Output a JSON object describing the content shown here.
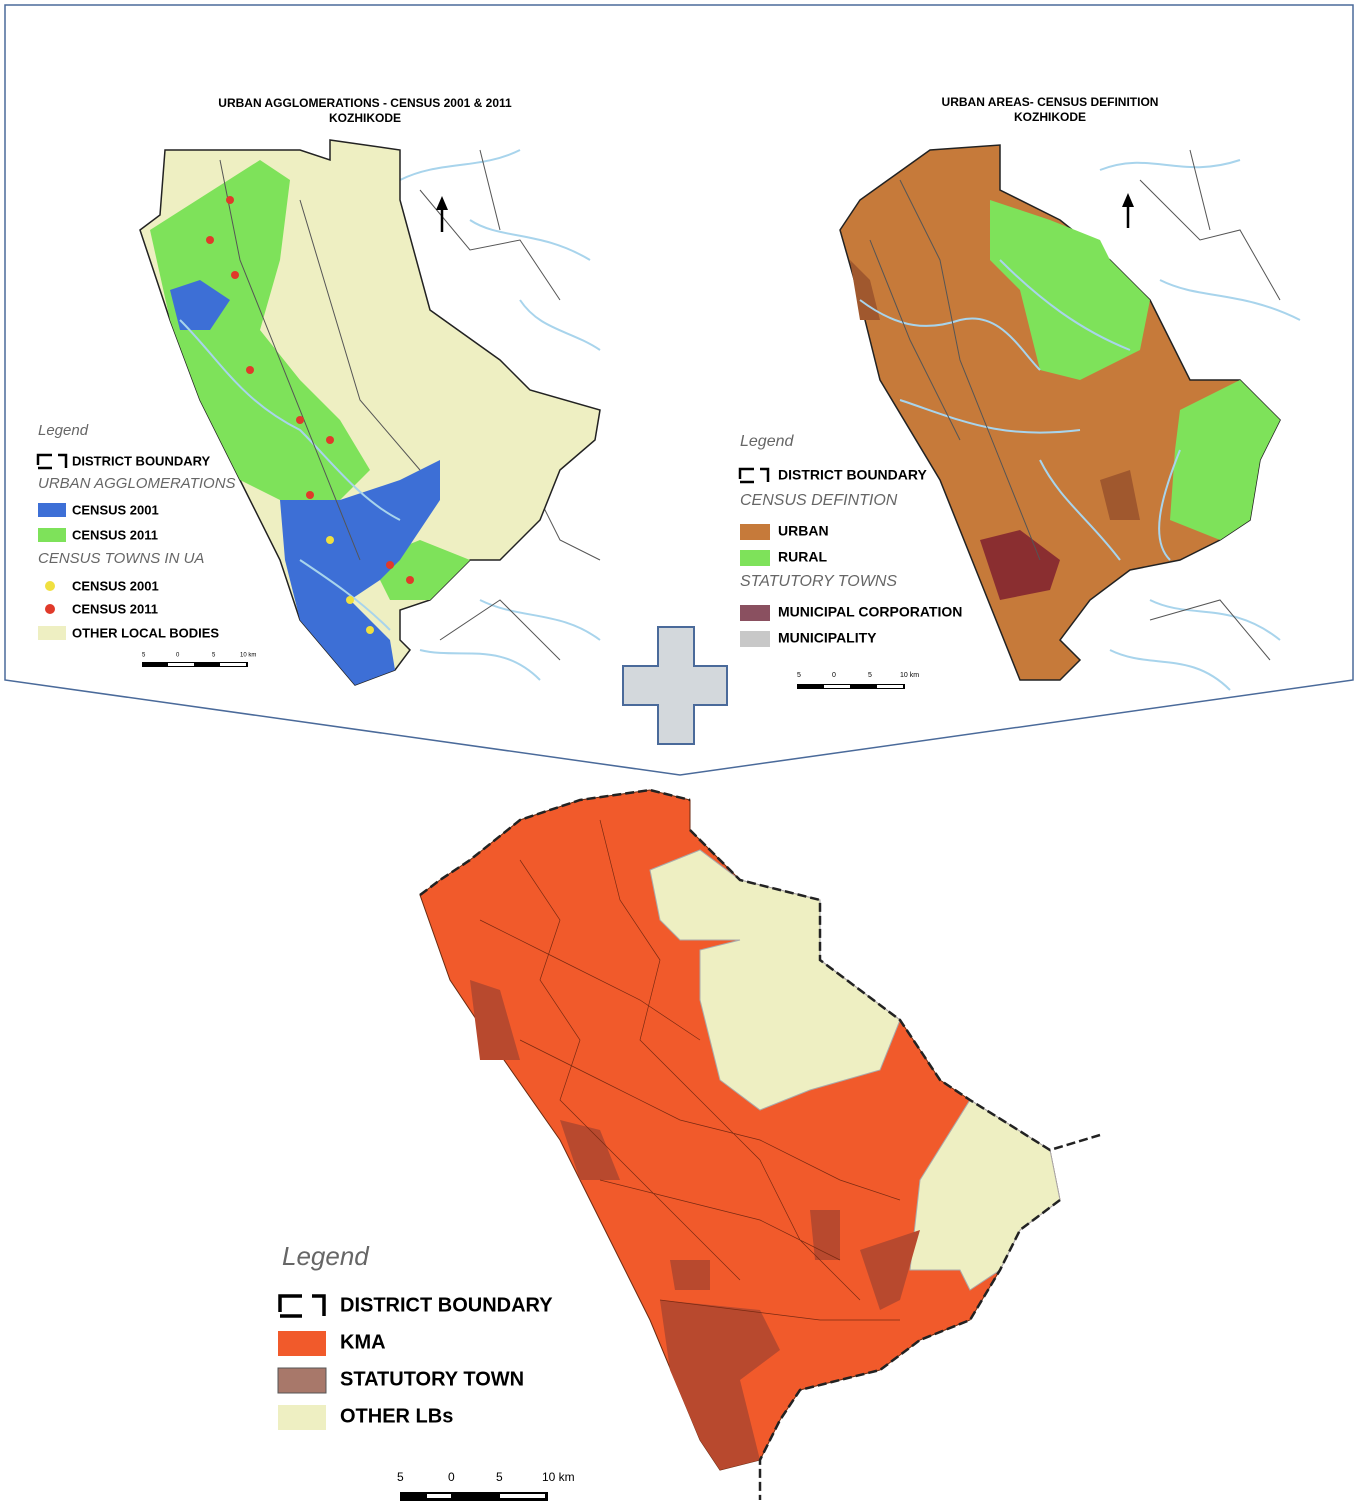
{
  "panels": [
    {
      "title": "URBAN AGGLOMERATIONS - CENSUS 2001 & 2011",
      "subtitle": "KOZHIKODE",
      "legend": [
        "Legend",
        "DISTRICT BOUNDARY",
        "URBAN AGGLOMERATIONS",
        "CENSUS 2001",
        "CENSUS 2011",
        "CENSUS TOWNS IN UA",
        "CENSUS 2001",
        "CENSUS 2011",
        "OTHER LOCAL BODIES"
      ],
      "scale": [
        "5",
        "0",
        "5",
        "10 km"
      ]
    },
    {
      "title": "URBAN AREAS- CENSUS DEFINITION",
      "subtitle": "KOZHIKODE",
      "legend": [
        "Legend",
        "DISTRICT BOUNDARY",
        "CENSUS DEFINTION",
        "URBAN",
        "RURAL",
        "STATUTORY TOWNS",
        "MUNICIPAL CORPORATION",
        "MUNICIPALITY"
      ],
      "scale": [
        "5",
        "0",
        "5",
        "10 km"
      ]
    },
    {
      "legend": [
        "Legend",
        "DISTRICT BOUNDARY",
        "KMA",
        "STATUTORY TOWN",
        "OTHER LBs"
      ],
      "scale": [
        "5",
        "0",
        "5",
        "10 km"
      ]
    }
  ]
}
